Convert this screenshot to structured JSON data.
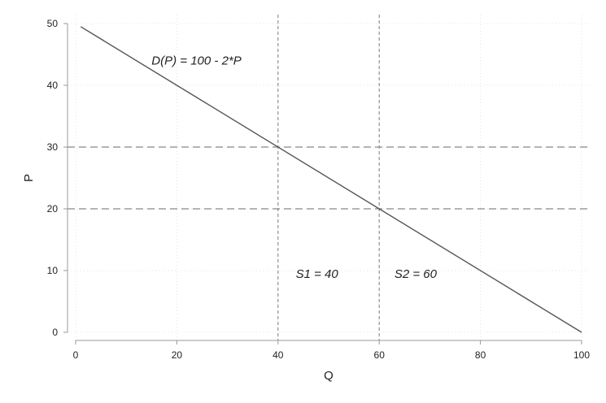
{
  "chart_data": {
    "type": "line",
    "title": "",
    "xlabel": "Q",
    "ylabel": "P",
    "xlim": [
      0,
      100
    ],
    "ylim": [
      0,
      50
    ],
    "xticks": [
      0,
      20,
      40,
      60,
      80,
      100
    ],
    "yticks": [
      0,
      10,
      20,
      30,
      40,
      50
    ],
    "grid": true,
    "series": [
      {
        "x": [
          1,
          100
        ],
        "y": [
          49.5,
          0
        ],
        "color": "#555555"
      }
    ],
    "reference_lines": {
      "horizontal": [
        30,
        20
      ],
      "vertical": [
        40,
        60
      ]
    },
    "annotations": [
      {
        "text": "D(P) = 100 - 2*P",
        "x": 15,
        "y": 44
      },
      {
        "text": "S1 = 40",
        "x": 43.5,
        "y": 9.5
      },
      {
        "text": "S2 = 60",
        "x": 63,
        "y": 9.5
      }
    ],
    "colors": {
      "line": "#555555",
      "reference": "#888888",
      "grid": "#e4e4e4",
      "axis": "#999999"
    }
  }
}
